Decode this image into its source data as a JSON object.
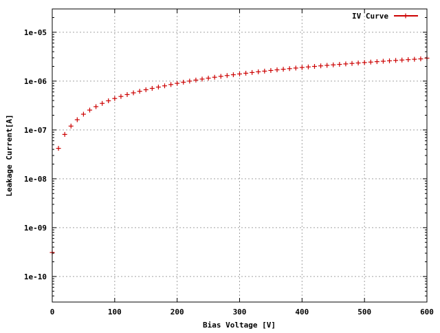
{
  "chart_data": {
    "type": "scatter",
    "title": "",
    "xlabel": "Bias Voltage [V]",
    "ylabel": "Leakage Current[A]",
    "x_scale": "linear",
    "y_scale": "log",
    "xlim": [
      0,
      600
    ],
    "ylim": [
      3e-11,
      3e-05
    ],
    "x_ticks": [
      0,
      100,
      200,
      300,
      400,
      500,
      600
    ],
    "x_tick_labels": [
      "0",
      "100",
      "200",
      "300",
      "400",
      "500",
      "600"
    ],
    "y_ticks": [
      1e-10,
      1e-09,
      1e-08,
      1e-07,
      1e-06,
      1e-05
    ],
    "y_tick_labels": [
      "1e-10",
      "1e-09",
      "1e-08",
      "1e-07",
      "1e-06",
      "1e-05"
    ],
    "grid": true,
    "legend_position": "top-right",
    "series": [
      {
        "name": "IV Curve",
        "color": "#cc0000",
        "marker": "plus",
        "x": [
          0,
          10,
          20,
          30,
          40,
          50,
          60,
          70,
          80,
          90,
          100,
          110,
          120,
          130,
          140,
          150,
          160,
          170,
          180,
          190,
          200,
          210,
          220,
          230,
          240,
          250,
          260,
          270,
          280,
          290,
          300,
          310,
          320,
          330,
          340,
          350,
          360,
          370,
          380,
          390,
          400,
          410,
          420,
          430,
          440,
          450,
          460,
          470,
          480,
          490,
          500,
          510,
          520,
          530,
          540,
          550,
          560,
          570,
          580,
          590,
          600
        ],
        "y": [
          3.1e-10,
          4.2e-08,
          8.1e-08,
          1.2e-07,
          1.62e-07,
          2.1e-07,
          2.55e-07,
          3e-07,
          3.5e-07,
          3.95e-07,
          4.4e-07,
          4.85e-07,
          5.3e-07,
          5.75e-07,
          6.2e-07,
          6.65e-07,
          7.1e-07,
          7.55e-07,
          8e-07,
          8.5e-07,
          9e-07,
          9.5e-07,
          1e-06,
          1.05e-06,
          1.1e-06,
          1.15e-06,
          1.2e-06,
          1.25e-06,
          1.3e-06,
          1.35e-06,
          1.4e-06,
          1.45e-06,
          1.5e-06,
          1.55e-06,
          1.6e-06,
          1.65e-06,
          1.7e-06,
          1.75e-06,
          1.8e-06,
          1.85e-06,
          1.9e-06,
          1.95e-06,
          2e-06,
          2.05e-06,
          2.1e-06,
          2.15e-06,
          2.2e-06,
          2.25e-06,
          2.3e-06,
          2.35e-06,
          2.4e-06,
          2.45e-06,
          2.5e-06,
          2.55e-06,
          2.6e-06,
          2.65e-06,
          2.7e-06,
          2.75e-06,
          2.8e-06,
          2.85e-06,
          2.95e-06
        ]
      }
    ]
  }
}
